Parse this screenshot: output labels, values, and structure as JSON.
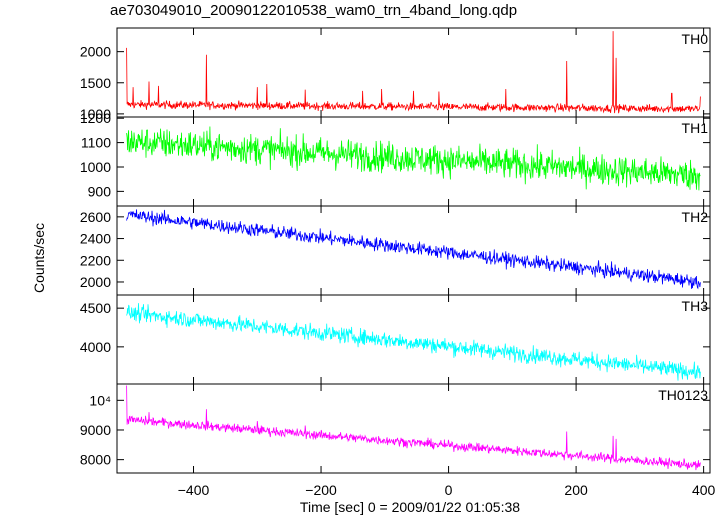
{
  "title": "ae703049010_20090122010538_wam0_trn_4band_long.qdp",
  "ylabel": "Counts/sec",
  "xlabel": "Time [sec] 0 = 2009/01/22 01:05:38",
  "chart_data": [
    {
      "type": "line",
      "name": "TH0",
      "color": "#ff0000",
      "xlim": [
        -520,
        410
      ],
      "ylim": [
        950,
        2380
      ],
      "yticks": [
        1000,
        1500,
        2000
      ],
      "ytick_labels": [
        "1000",
        "1500",
        "2000"
      ],
      "baseline_start": 1150,
      "baseline_end": 1080,
      "noise": 45,
      "spikes": [
        [
          -505,
          2060
        ],
        [
          -495,
          1430
        ],
        [
          -470,
          1520
        ],
        [
          -455,
          1450
        ],
        [
          -380,
          1950
        ],
        [
          -300,
          1430
        ],
        [
          -285,
          1480
        ],
        [
          -225,
          1390
        ],
        [
          -135,
          1370
        ],
        [
          -105,
          1400
        ],
        [
          -55,
          1370
        ],
        [
          -15,
          1360
        ],
        [
          90,
          1400
        ],
        [
          185,
          1850
        ],
        [
          258,
          2330
        ],
        [
          263,
          1900
        ],
        [
          350,
          1330
        ],
        [
          395,
          1280
        ]
      ]
    },
    {
      "type": "line",
      "name": "TH1",
      "color": "#00ff00",
      "xlim": [
        -520,
        410
      ],
      "ylim": [
        840,
        1205
      ],
      "yticks": [
        900,
        1000,
        1100,
        1200
      ],
      "ytick_labels": [
        "900",
        "1000",
        "1100",
        "1200"
      ],
      "baseline_start": 1105,
      "baseline_end": 965,
      "noise": 45,
      "spikes": []
    },
    {
      "type": "line",
      "name": "TH2",
      "color": "#0000ff",
      "xlim": [
        -520,
        410
      ],
      "ylim": [
        1880,
        2700
      ],
      "yticks": [
        2000,
        2200,
        2400,
        2600
      ],
      "ytick_labels": [
        "2000",
        "2200",
        "2400",
        "2600"
      ],
      "baseline_start": 2620,
      "baseline_end": 2000,
      "noise": 45,
      "spikes": []
    },
    {
      "type": "line",
      "name": "TH3",
      "color": "#00ffff",
      "xlim": [
        -520,
        410
      ],
      "ylim": [
        3520,
        4670
      ],
      "yticks": [
        4000,
        4500
      ],
      "ytick_labels": [
        "4000",
        "4500"
      ],
      "baseline_start": 4440,
      "baseline_end": 3670,
      "noise": 75,
      "spikes": []
    },
    {
      "type": "line",
      "name": "TH0123",
      "color": "#ff00ff",
      "xlim": [
        -520,
        410
      ],
      "ylim": [
        7550,
        10550
      ],
      "yticks": [
        8000,
        9000,
        10000
      ],
      "ytick_labels": [
        "8000",
        "9000",
        "10⁴"
      ],
      "baseline_start": 9350,
      "baseline_end": 7800,
      "noise": 110,
      "spikes": [
        [
          -505,
          10500
        ],
        [
          -470,
          9600
        ],
        [
          -380,
          9700
        ],
        [
          -300,
          9300
        ],
        [
          -225,
          9150
        ],
        [
          185,
          8950
        ],
        [
          258,
          8800
        ],
        [
          263,
          8700
        ]
      ]
    }
  ],
  "xaxis": {
    "ticks": [
      -400,
      -200,
      0,
      200,
      400
    ],
    "tick_labels": [
      "−400",
      "−200",
      "0",
      "200",
      "400"
    ]
  }
}
